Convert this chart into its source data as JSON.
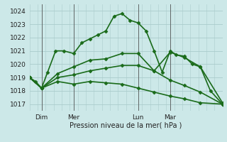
{
  "title": "",
  "xlabel": "Pression niveau de la mer( hPa )",
  "ylabel": "",
  "bg_color": "#cce8e8",
  "grid_color": "#aacccc",
  "line_color": "#1a6b1a",
  "xlim": [
    0,
    96
  ],
  "ylim": [
    1016.5,
    1024.5
  ],
  "yticks": [
    1017,
    1018,
    1019,
    1020,
    1021,
    1022,
    1023,
    1024
  ],
  "xtick_labels": [
    "Dim",
    "Mer",
    "Lun",
    "Mar"
  ],
  "xtick_positions": [
    6,
    22,
    54,
    70
  ],
  "vlines": [
    6,
    22,
    54,
    70
  ],
  "series": [
    {
      "x": [
        0,
        3,
        6,
        9,
        13,
        17,
        22,
        26,
        30,
        34,
        38,
        42,
        46,
        50,
        54,
        58,
        62,
        66,
        70,
        73,
        77,
        81,
        85,
        90,
        96
      ],
      "y": [
        1019.0,
        1018.7,
        1018.2,
        1019.4,
        1021.0,
        1021.0,
        1020.8,
        1021.6,
        1021.9,
        1022.2,
        1022.5,
        1023.6,
        1023.8,
        1023.3,
        1023.1,
        1022.5,
        1021.0,
        1019.4,
        1021.0,
        1020.7,
        1020.6,
        1020.0,
        1019.8,
        1018.0,
        1017.0
      ],
      "marker": "D",
      "markersize": 2.5,
      "linewidth": 1.2
    },
    {
      "x": [
        0,
        6,
        14,
        22,
        30,
        38,
        46,
        54,
        62,
        70,
        77,
        85,
        96
      ],
      "y": [
        1019.0,
        1018.2,
        1019.3,
        1019.8,
        1020.3,
        1020.4,
        1020.8,
        1020.8,
        1019.5,
        1020.9,
        1020.5,
        1019.8,
        1017.1
      ],
      "marker": "D",
      "markersize": 2.5,
      "linewidth": 1.2
    },
    {
      "x": [
        0,
        6,
        14,
        22,
        30,
        38,
        46,
        54,
        62,
        70,
        77,
        85,
        96
      ],
      "y": [
        1019.0,
        1018.2,
        1019.0,
        1019.2,
        1019.5,
        1019.7,
        1019.9,
        1019.9,
        1019.5,
        1018.8,
        1018.4,
        1017.9,
        1017.0
      ],
      "marker": "D",
      "markersize": 2.5,
      "linewidth": 1.2
    },
    {
      "x": [
        0,
        6,
        14,
        22,
        30,
        38,
        46,
        54,
        62,
        70,
        77,
        85,
        96
      ],
      "y": [
        1019.0,
        1018.2,
        1018.7,
        1018.5,
        1018.7,
        1018.6,
        1018.5,
        1018.2,
        1017.9,
        1017.6,
        1017.4,
        1017.1,
        1017.0
      ],
      "marker": "D",
      "markersize": 2.5,
      "linewidth": 1.2
    }
  ]
}
